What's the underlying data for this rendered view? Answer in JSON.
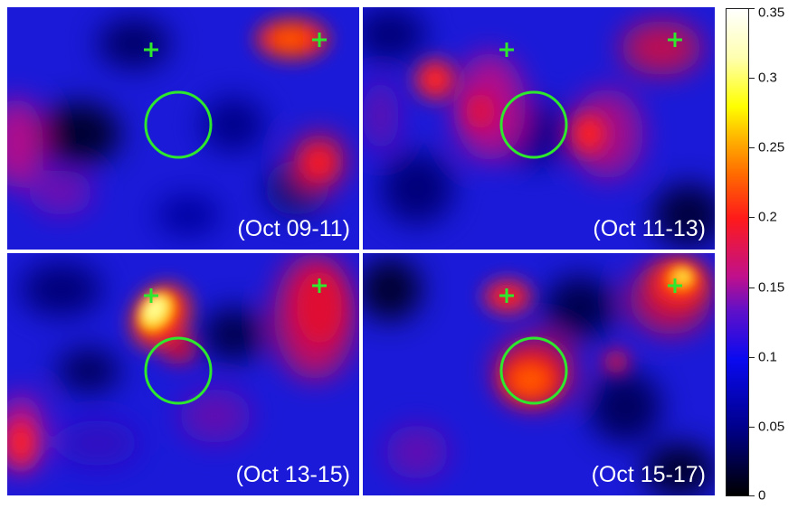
{
  "panels": [
    {
      "label": "(Oct 09-11)"
    },
    {
      "label": "(Oct 11-13)"
    },
    {
      "label": "(Oct 13-15)"
    },
    {
      "label": "(Oct 15-17)"
    }
  ],
  "colorbar": {
    "ticks": [
      "0.35",
      "0.3",
      "0.25",
      "0.2",
      "0.15",
      "0.1",
      "0.05",
      "0"
    ]
  },
  "colors": {
    "marker": "#2ee82e",
    "background": "#1a1ad8",
    "label": "#ffffff"
  }
}
